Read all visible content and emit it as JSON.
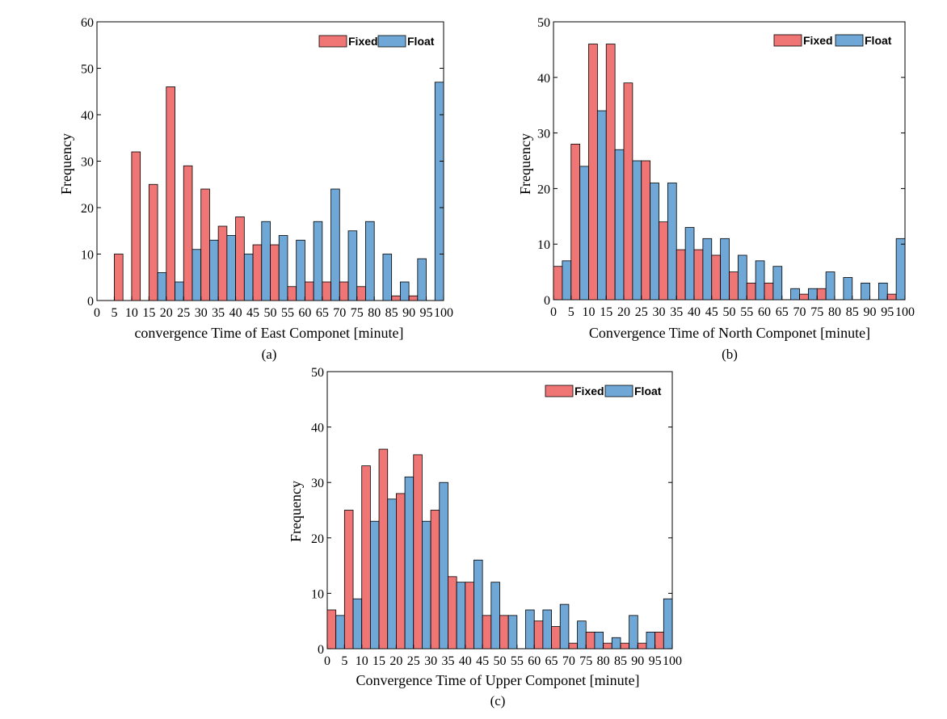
{
  "colors": {
    "fixed": "#f07575",
    "float": "#6fa8d6",
    "edge": "#000000"
  },
  "chart_data": [
    {
      "type": "bar",
      "caption": "(a)",
      "xlabel": "convergence Time of East Componet [minute]",
      "ylabel": "Frequency",
      "ylim": [
        0,
        60
      ],
      "yticks": [
        0,
        10,
        20,
        30,
        40,
        50,
        60
      ],
      "xticks": [
        "0",
        "5",
        "10",
        "15",
        "20",
        "25",
        "30",
        "35",
        "40",
        "45",
        "50",
        "55",
        "60",
        "65",
        "70",
        "75",
        "80",
        "85",
        "90",
        "95",
        "100"
      ],
      "legend": {
        "position": "top-right",
        "entries": [
          "Fixed",
          "Float"
        ]
      },
      "bins": [
        10,
        15,
        20,
        25,
        30,
        35,
        40,
        45,
        50,
        55,
        60,
        65,
        70,
        75,
        80,
        85,
        90,
        95,
        100
      ],
      "series": [
        {
          "name": "Fixed",
          "values": [
            10,
            32,
            25,
            46,
            29,
            24,
            16,
            18,
            12,
            12,
            3,
            4,
            4,
            4,
            3,
            0,
            1,
            1,
            0
          ]
        },
        {
          "name": "Float",
          "values": [
            0,
            0,
            6,
            4,
            11,
            13,
            14,
            10,
            17,
            14,
            13,
            17,
            24,
            15,
            17,
            10,
            4,
            9,
            47
          ]
        }
      ]
    },
    {
      "type": "bar",
      "caption": "(b)",
      "xlabel": "Convergence Time of North Componet [minute]",
      "ylabel": "Frequency",
      "ylim": [
        0,
        50
      ],
      "yticks": [
        0,
        10,
        20,
        30,
        40,
        50
      ],
      "xticks": [
        "0",
        "5",
        "10",
        "15",
        "20",
        "25",
        "30",
        "35",
        "40",
        "45",
        "50",
        "55",
        "60",
        "65",
        "70",
        "75",
        "80",
        "85",
        "90",
        "95",
        "100"
      ],
      "legend": {
        "position": "top-right",
        "entries": [
          "Fixed",
          "Float"
        ]
      },
      "bins": [
        5,
        10,
        15,
        20,
        25,
        30,
        35,
        40,
        45,
        50,
        55,
        60,
        65,
        70,
        75,
        80,
        85,
        90,
        95,
        100
      ],
      "series": [
        {
          "name": "Fixed",
          "values": [
            6,
            28,
            46,
            46,
            39,
            25,
            14,
            9,
            9,
            8,
            5,
            3,
            3,
            0,
            1,
            2,
            0,
            0,
            0,
            1
          ]
        },
        {
          "name": "Float",
          "values": [
            7,
            24,
            34,
            27,
            25,
            21,
            21,
            13,
            11,
            11,
            8,
            7,
            6,
            2,
            2,
            5,
            4,
            3,
            3,
            11
          ]
        }
      ]
    },
    {
      "type": "bar",
      "caption": "(c)",
      "xlabel": "Convergence Time of Upper Componet [minute]",
      "ylabel": "Frequency",
      "ylim": [
        0,
        50
      ],
      "yticks": [
        0,
        10,
        20,
        30,
        40,
        50
      ],
      "xticks": [
        "0",
        "5",
        "10",
        "15",
        "20",
        "25",
        "30",
        "35",
        "40",
        "45",
        "50",
        "55",
        "60",
        "65",
        "70",
        "75",
        "80",
        "85",
        "90",
        "95",
        "100"
      ],
      "legend": {
        "position": "top-right",
        "entries": [
          "Fixed",
          "Float"
        ]
      },
      "bins": [
        5,
        10,
        15,
        20,
        25,
        30,
        35,
        40,
        45,
        50,
        55,
        60,
        65,
        70,
        75,
        80,
        85,
        90,
        95,
        100
      ],
      "series": [
        {
          "name": "Fixed",
          "values": [
            7,
            25,
            33,
            36,
            28,
            35,
            25,
            13,
            12,
            6,
            6,
            0,
            5,
            4,
            1,
            3,
            1,
            1,
            1,
            3
          ]
        },
        {
          "name": "Float",
          "values": [
            6,
            9,
            23,
            27,
            31,
            23,
            30,
            12,
            16,
            12,
            6,
            7,
            7,
            8,
            5,
            3,
            2,
            6,
            3,
            9
          ]
        }
      ]
    }
  ]
}
